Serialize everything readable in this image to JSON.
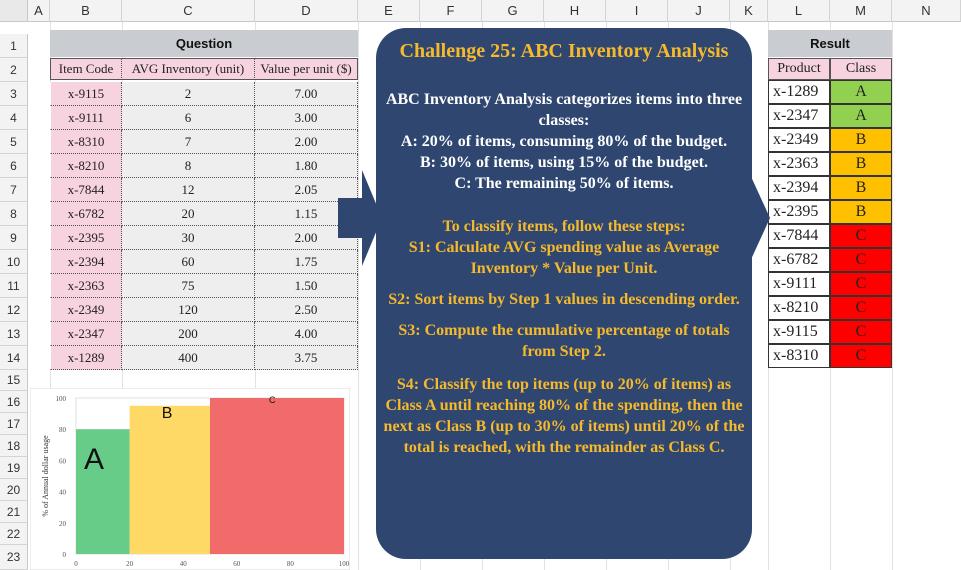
{
  "columns": [
    "A",
    "B",
    "C",
    "D",
    "E",
    "F",
    "G",
    "H",
    "I",
    "J",
    "K",
    "L",
    "M",
    "N"
  ],
  "rows": [
    "1",
    "2",
    "3",
    "4",
    "5",
    "6",
    "7",
    "8",
    "9",
    "10",
    "11",
    "12",
    "13",
    "14",
    "15",
    "16",
    "17",
    "18",
    "19",
    "20",
    "21",
    "22",
    "23"
  ],
  "question": {
    "band_label": "Question",
    "headers": [
      "Item Code",
      "AVG Inventory (unit)",
      "Value per unit ($)"
    ],
    "items": [
      {
        "code": "x-9115",
        "avg": "2",
        "value": "7.00"
      },
      {
        "code": "x-9111",
        "avg": "6",
        "value": "3.00"
      },
      {
        "code": "x-8310",
        "avg": "7",
        "value": "2.00"
      },
      {
        "code": "x-8210",
        "avg": "8",
        "value": "1.80"
      },
      {
        "code": "x-7844",
        "avg": "12",
        "value": "2.05"
      },
      {
        "code": "x-6782",
        "avg": "20",
        "value": "1.15"
      },
      {
        "code": "x-2395",
        "avg": "30",
        "value": "2.00"
      },
      {
        "code": "x-2394",
        "avg": "60",
        "value": "1.75"
      },
      {
        "code": "x-2363",
        "avg": "75",
        "value": "1.50"
      },
      {
        "code": "x-2349",
        "avg": "120",
        "value": "2.50"
      },
      {
        "code": "x-2347",
        "avg": "200",
        "value": "4.00"
      },
      {
        "code": "x-1289",
        "avg": "400",
        "value": "3.75"
      }
    ]
  },
  "result": {
    "band_label": "Result",
    "headers": [
      "Product",
      "Class"
    ],
    "rows": [
      {
        "product": "x-1289",
        "class": "A"
      },
      {
        "product": "x-2347",
        "class": "A"
      },
      {
        "product": "x-2349",
        "class": "B"
      },
      {
        "product": "x-2363",
        "class": "B"
      },
      {
        "product": "x-2394",
        "class": "B"
      },
      {
        "product": "x-2395",
        "class": "B"
      },
      {
        "product": "x-7844",
        "class": "C"
      },
      {
        "product": "x-6782",
        "class": "C"
      },
      {
        "product": "x-9111",
        "class": "C"
      },
      {
        "product": "x-8210",
        "class": "C"
      },
      {
        "product": "x-9115",
        "class": "C"
      },
      {
        "product": "x-8310",
        "class": "C"
      }
    ],
    "class_colors": {
      "A": "#92d050",
      "B": "#ffc000",
      "C": "#ff0000"
    }
  },
  "callout": {
    "title": "Challenge 25: ABC Inventory Analysis",
    "intro": "ABC Inventory Analysis categorizes items into three classes:",
    "class_a": "A: 20% of items, consuming 80% of the budget.",
    "class_b": "B: 30% of items, using 15% of the budget.",
    "class_c": "C: The remaining 50% of items.",
    "steps_intro": "To classify items, follow these steps:",
    "s1": "S1: Calculate AVG spending value as Average Inventory * Value per Unit.",
    "s2": "S2: Sort items by Step 1 values in descending order.",
    "s3": "S3: Compute the cumulative percentage of totals from Step 2.",
    "s4": "S4: Classify the top items (up to 20% of items) as Class A until reaching 80% of the spending, then the next as Class B (up to 30% of items) until 20% of the total is reached, with the remainder as Class C."
  },
  "chart_data": {
    "type": "bar",
    "ylabel": "% of Annual dollar usage",
    "xlim": [
      0,
      100
    ],
    "ylim": [
      0,
      100
    ],
    "xticks": [
      "0",
      "20",
      "40",
      "60",
      "80",
      "100"
    ],
    "yticks": [
      "0",
      "20",
      "40",
      "60",
      "80",
      "100"
    ],
    "blocks": [
      {
        "label": "A",
        "x_start": 0,
        "x_end": 20,
        "y": 80,
        "color": "#66cc88"
      },
      {
        "label": "B",
        "x_start": 20,
        "x_end": 50,
        "y": 95,
        "color": "#ffd966"
      },
      {
        "label": "C",
        "x_start": 50,
        "x_end": 100,
        "y": 100,
        "color": "#f26b6b"
      }
    ]
  }
}
